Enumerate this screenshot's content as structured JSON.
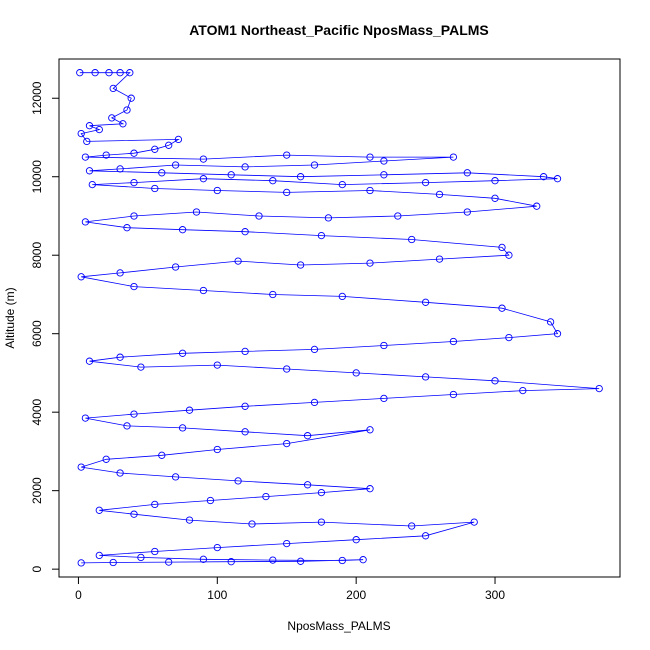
{
  "chart_data": {
    "type": "line",
    "title": "ATOM1 Northeast_Pacific NposMass_PALMS",
    "xlabel": "NposMass_PALMS",
    "ylabel": "Altitude (m)",
    "xlim": [
      -14,
      390
    ],
    "ylim": [
      -200,
      13000
    ],
    "xticks": [
      0,
      100,
      200,
      300
    ],
    "yticks": [
      0,
      2000,
      4000,
      6000,
      8000,
      10000,
      12000
    ],
    "grid": false,
    "line_color": "#0000ff",
    "marker": "open-circle",
    "points": [
      [
        1,
        12650
      ],
      [
        12,
        12650
      ],
      [
        22,
        12650
      ],
      [
        30,
        12650
      ],
      [
        37,
        12650
      ],
      [
        25,
        12250
      ],
      [
        38,
        12000
      ],
      [
        35,
        11700
      ],
      [
        24,
        11500
      ],
      [
        32,
        11350
      ],
      [
        8,
        11300
      ],
      [
        15,
        11200
      ],
      [
        2,
        11100
      ],
      [
        6,
        10900
      ],
      [
        72,
        10950
      ],
      [
        65,
        10800
      ],
      [
        55,
        10700
      ],
      [
        40,
        10600
      ],
      [
        20,
        10550
      ],
      [
        5,
        10500
      ],
      [
        90,
        10450
      ],
      [
        150,
        10550
      ],
      [
        210,
        10500
      ],
      [
        270,
        10500
      ],
      [
        220,
        10400
      ],
      [
        170,
        10300
      ],
      [
        120,
        10250
      ],
      [
        70,
        10300
      ],
      [
        30,
        10200
      ],
      [
        8,
        10150
      ],
      [
        60,
        10100
      ],
      [
        110,
        10050
      ],
      [
        160,
        10000
      ],
      [
        220,
        10050
      ],
      [
        280,
        10100
      ],
      [
        335,
        10000
      ],
      [
        345,
        9950
      ],
      [
        300,
        9900
      ],
      [
        250,
        9850
      ],
      [
        190,
        9800
      ],
      [
        140,
        9900
      ],
      [
        90,
        9950
      ],
      [
        40,
        9850
      ],
      [
        10,
        9800
      ],
      [
        55,
        9700
      ],
      [
        100,
        9650
      ],
      [
        150,
        9600
      ],
      [
        210,
        9650
      ],
      [
        260,
        9550
      ],
      [
        300,
        9450
      ],
      [
        330,
        9250
      ],
      [
        280,
        9100
      ],
      [
        230,
        9000
      ],
      [
        180,
        8950
      ],
      [
        130,
        9000
      ],
      [
        85,
        9100
      ],
      [
        40,
        9000
      ],
      [
        5,
        8850
      ],
      [
        35,
        8700
      ],
      [
        75,
        8650
      ],
      [
        120,
        8600
      ],
      [
        175,
        8500
      ],
      [
        240,
        8400
      ],
      [
        305,
        8200
      ],
      [
        310,
        8000
      ],
      [
        260,
        7900
      ],
      [
        210,
        7800
      ],
      [
        160,
        7750
      ],
      [
        115,
        7850
      ],
      [
        70,
        7700
      ],
      [
        30,
        7550
      ],
      [
        2,
        7450
      ],
      [
        40,
        7200
      ],
      [
        90,
        7100
      ],
      [
        140,
        7000
      ],
      [
        190,
        6950
      ],
      [
        250,
        6800
      ],
      [
        305,
        6650
      ],
      [
        340,
        6300
      ],
      [
        345,
        6000
      ],
      [
        310,
        5900
      ],
      [
        270,
        5800
      ],
      [
        220,
        5700
      ],
      [
        170,
        5600
      ],
      [
        120,
        5550
      ],
      [
        75,
        5500
      ],
      [
        30,
        5400
      ],
      [
        8,
        5300
      ],
      [
        45,
        5150
      ],
      [
        100,
        5200
      ],
      [
        150,
        5100
      ],
      [
        200,
        5000
      ],
      [
        250,
        4900
      ],
      [
        300,
        4800
      ],
      [
        375,
        4600
      ],
      [
        320,
        4550
      ],
      [
        270,
        4450
      ],
      [
        220,
        4350
      ],
      [
        170,
        4250
      ],
      [
        120,
        4150
      ],
      [
        80,
        4050
      ],
      [
        40,
        3950
      ],
      [
        5,
        3850
      ],
      [
        35,
        3650
      ],
      [
        75,
        3600
      ],
      [
        120,
        3500
      ],
      [
        165,
        3400
      ],
      [
        210,
        3550
      ],
      [
        150,
        3200
      ],
      [
        100,
        3050
      ],
      [
        60,
        2900
      ],
      [
        20,
        2800
      ],
      [
        2,
        2600
      ],
      [
        30,
        2450
      ],
      [
        70,
        2350
      ],
      [
        115,
        2250
      ],
      [
        165,
        2150
      ],
      [
        210,
        2050
      ],
      [
        175,
        1950
      ],
      [
        135,
        1850
      ],
      [
        95,
        1750
      ],
      [
        55,
        1650
      ],
      [
        15,
        1500
      ],
      [
        40,
        1400
      ],
      [
        80,
        1250
      ],
      [
        125,
        1150
      ],
      [
        175,
        1200
      ],
      [
        240,
        1100
      ],
      [
        285,
        1200
      ],
      [
        250,
        850
      ],
      [
        200,
        750
      ],
      [
        150,
        650
      ],
      [
        100,
        550
      ],
      [
        55,
        450
      ],
      [
        15,
        350
      ],
      [
        45,
        300
      ],
      [
        90,
        250
      ],
      [
        140,
        230
      ],
      [
        190,
        220
      ],
      [
        205,
        240
      ],
      [
        160,
        200
      ],
      [
        110,
        190
      ],
      [
        65,
        180
      ],
      [
        25,
        170
      ],
      [
        2,
        160
      ]
    ]
  }
}
